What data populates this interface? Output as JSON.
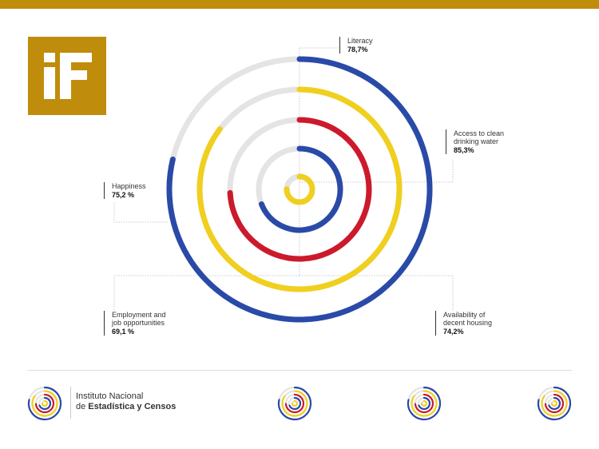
{
  "org": {
    "line1": "Instituto Nacional",
    "line2_prefix": "de ",
    "line2_bold": "Estadística y Censos"
  },
  "colors": {
    "gold": "#c08c0c",
    "blue": "#2a4aa8",
    "yellow": "#f0cf1e",
    "red": "#cc1a2c",
    "track": "#e4e4e4"
  },
  "chart_data": {
    "type": "radial-bar",
    "max": 100,
    "series": [
      {
        "name": "Literacy",
        "value": 78.7,
        "label": "78,7%",
        "color": "#2a4aa8"
      },
      {
        "name": "Access to clean\ndrinking water",
        "value": 85.3,
        "label": "85,3%",
        "color": "#f0cf1e"
      },
      {
        "name": "Availability of\ndecent housing",
        "value": 74.2,
        "label": "74,2%",
        "color": "#cc1a2c"
      },
      {
        "name": "Employment and\njob opportunities",
        "value": 69.1,
        "label": "69,1 %",
        "color": "#2a4aa8"
      },
      {
        "name": "Happiness",
        "value": 75.2,
        "label": "75,2 %",
        "color": "#f0cf1e"
      }
    ]
  }
}
